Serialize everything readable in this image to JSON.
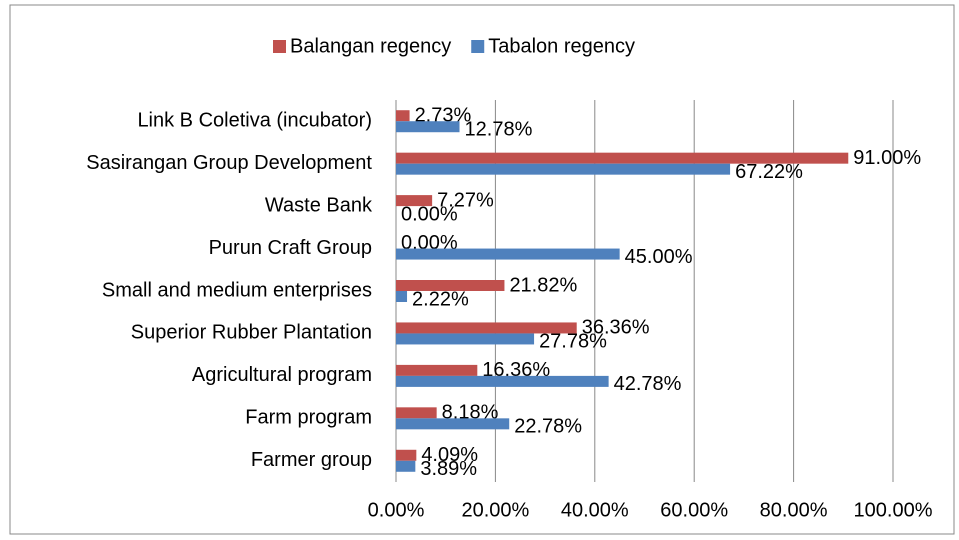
{
  "chart_data": {
    "type": "barh",
    "categories": [
      "Link B Coletiva (incubator)",
      "Sasirangan Group Development",
      "Waste Bank",
      "Purun Craft Group",
      "Small and medium enterprises",
      "Superior Rubber Plantation",
      "Agricultural program",
      "Farm program",
      "Farmer group"
    ],
    "series": [
      {
        "name": "Balangan regency",
        "color": "#c0504d",
        "values": [
          2.73,
          91.0,
          7.27,
          0.0,
          21.82,
          36.36,
          16.36,
          8.18,
          4.09
        ],
        "value_labels": [
          "2.73%",
          "91.00%",
          "7.27%",
          "0.00%",
          "21.82%",
          "36.36%",
          "16.36%",
          "8.18%",
          "4.09%"
        ]
      },
      {
        "name": "Tabalon regency",
        "color": "#4f81bd",
        "values": [
          12.78,
          67.22,
          0.0,
          45.0,
          2.22,
          27.78,
          42.78,
          22.78,
          3.89
        ],
        "value_labels": [
          "12.78%",
          "67.22%",
          "0.00%",
          "45.00%",
          "2.22%",
          "27.78%",
          "42.78%",
          "22.78%",
          "3.89%"
        ]
      }
    ],
    "xlim": [
      0,
      100
    ],
    "xticks": [
      {
        "value": 0,
        "label": "0.00%"
      },
      {
        "value": 20,
        "label": "20.00%"
      },
      {
        "value": 40,
        "label": "40.00%"
      },
      {
        "value": 60,
        "label": "60.00%"
      },
      {
        "value": 80,
        "label": "80.00%"
      },
      {
        "value": 100,
        "label": "100.00%"
      }
    ],
    "grid": true,
    "legend": "top"
  }
}
